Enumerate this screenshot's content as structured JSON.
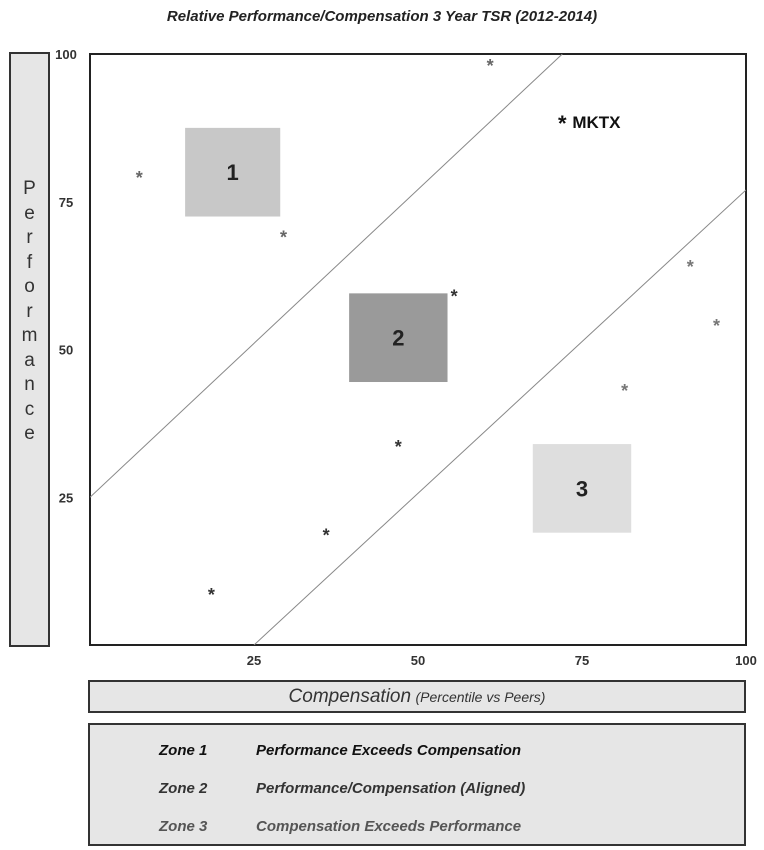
{
  "title": "Relative Performance/Compensation 3 Year TSR (2012-2014)",
  "y_axis_letters": [
    "P",
    "e",
    "r",
    "f",
    "o",
    "r",
    "m",
    "a",
    "n",
    "c",
    "e"
  ],
  "x_axis": {
    "main": "Compensation",
    "sub": "(Percentile vs Peers)"
  },
  "legend": [
    {
      "zone": "Zone 1",
      "text": "Performance Exceeds Compensation",
      "color": "#111111"
    },
    {
      "zone": "Zone 2",
      "text": "Performance/Compensation (Aligned)",
      "color": "#333333"
    },
    {
      "zone": "Zone 3",
      "text": "Compensation Exceeds Performance",
      "color": "#555555"
    }
  ],
  "chart_data": {
    "type": "scatter",
    "title": "Relative Performance/Compensation 3 Year TSR (2012-2014)",
    "xlabel": "Compensation (Percentile vs Peers)",
    "ylabel": "Performance",
    "xlim": [
      0,
      100
    ],
    "ylim": [
      0,
      100
    ],
    "x_ticks": [
      25,
      50,
      75,
      100
    ],
    "y_ticks": [
      25,
      50,
      75,
      100
    ],
    "grid": false,
    "points": [
      {
        "x": 7.5,
        "y": 79.5,
        "color": "#666666"
      },
      {
        "x": 29.5,
        "y": 69.5,
        "color": "#666666"
      },
      {
        "x": 61,
        "y": 98.5,
        "color": "#666666"
      },
      {
        "x": 55.5,
        "y": 59.5,
        "color": "#333333"
      },
      {
        "x": 47,
        "y": 34,
        "color": "#333333"
      },
      {
        "x": 36,
        "y": 19,
        "color": "#333333"
      },
      {
        "x": 18.5,
        "y": 9,
        "color": "#333333"
      },
      {
        "x": 81.5,
        "y": 43.5,
        "color": "#777777"
      },
      {
        "x": 91.5,
        "y": 64.5,
        "color": "#777777"
      },
      {
        "x": 95.5,
        "y": 54.5,
        "color": "#777777"
      },
      {
        "x": 72,
        "y": 88.5,
        "color": "#111111",
        "label": "MKTX"
      }
    ],
    "zone_boxes": [
      {
        "label": "1",
        "x0": 14.5,
        "x1": 29,
        "y0": 72.5,
        "y1": 87.5,
        "fill": "#c8c8c8"
      },
      {
        "label": "2",
        "x0": 39.5,
        "x1": 54.5,
        "y0": 44.5,
        "y1": 59.5,
        "fill": "#9a9a9a"
      },
      {
        "label": "3",
        "x0": 67.5,
        "x1": 82.5,
        "y0": 19,
        "y1": 34,
        "fill": "#dedede"
      }
    ],
    "lines": [
      {
        "x1": 0,
        "y1": 25,
        "x2": 72,
        "y2": 100
      },
      {
        "x1": 25,
        "y1": 0,
        "x2": 100,
        "y2": 77
      }
    ]
  }
}
